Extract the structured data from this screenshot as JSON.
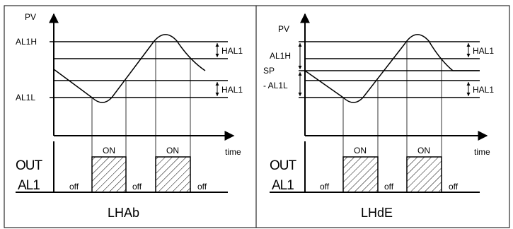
{
  "panels": [
    {
      "id": "lhab",
      "caption": "LHAb",
      "y_axis_label": "PV",
      "x_axis_label": "time",
      "level_labels": {
        "upper": "AL1H",
        "lower": "AL1L"
      },
      "hysteresis_labels": [
        "HAL1",
        "HAL1"
      ],
      "output_labels": [
        "OUT",
        "AL1"
      ],
      "state_labels": {
        "on": [
          "ON",
          "ON"
        ],
        "off": [
          "off",
          "off",
          "off"
        ]
      }
    },
    {
      "id": "lhde",
      "caption": "LHdE",
      "y_axis_label": "PV",
      "x_axis_label": "time",
      "level_labels": {
        "upper": "AL1H",
        "setpoint": "SP",
        "lower": "- AL1L"
      },
      "hysteresis_labels": [
        "HAL1",
        "HAL1"
      ],
      "output_labels": [
        "OUT",
        "AL1"
      ],
      "state_labels": {
        "on": [
          "ON",
          "ON"
        ],
        "off": [
          "off",
          "off",
          "off"
        ]
      }
    }
  ],
  "colors": {
    "line": "#000000",
    "background": "#ffffff"
  }
}
